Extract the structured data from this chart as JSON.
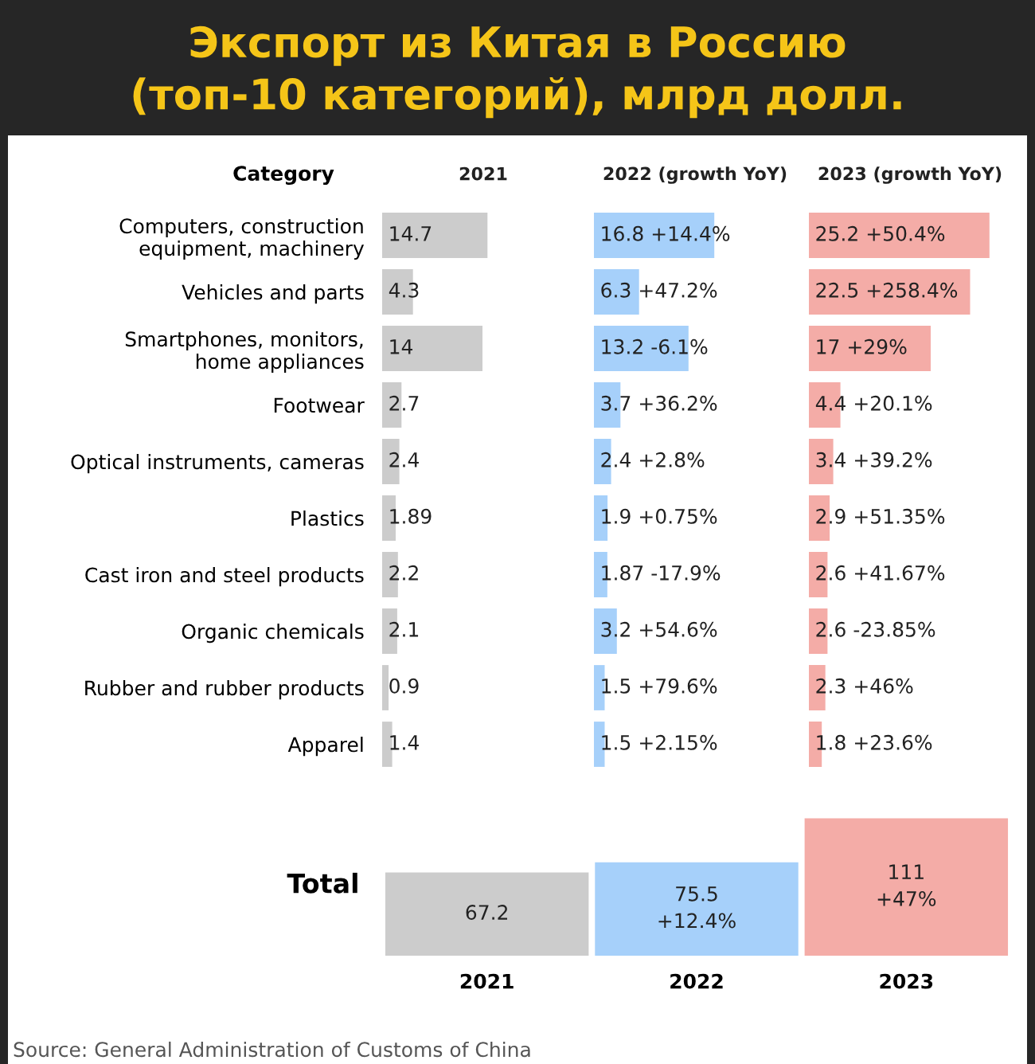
{
  "chart_data": [
    {
      "type": "bar",
      "orientation": "horizontal",
      "title": "Экспорт из Китая в Россию\n(топ-10 категорий), млрд долл.",
      "subtitle": "2021",
      "ylabel": "Category",
      "categories": [
        "Computers, construction\nequipment, machinery",
        "Vehicles and parts",
        "Smartphones, monitors,\nhome appliances",
        "Footwear",
        "Optical instruments, cameras",
        "Plastics",
        "Cast iron and steel products",
        "Organic chemicals",
        "Rubber and rubber products",
        "Apparel"
      ],
      "values": [
        14.7,
        4.3,
        14,
        2.7,
        2.4,
        1.89,
        2.2,
        2.1,
        0.9,
        1.4
      ],
      "color": "#cccccc",
      "data_labels": true,
      "tick_labels": "y"
    },
    {
      "type": "bar",
      "orientation": "horizontal",
      "title": "2022 (growth YoY)",
      "values": [
        16.8,
        6.3,
        13.2,
        3.7,
        2.4,
        1.9,
        1.87,
        3.2,
        1.5,
        1.5
      ],
      "color": "#a6d0fa",
      "value_labels": [
        "16.8 +14.4%",
        "6.3 +47.2%",
        "13.2 -6.1%",
        "3.7 +36.2%",
        "2.4 +2.8%",
        "1.9 +0.75%",
        "1.87 -17.9%",
        "3.2 +54.6%",
        "1.5 +79.6%",
        "1.5 +2.15%"
      ],
      "tick_labels": false
    },
    {
      "type": "bar",
      "orientation": "horizontal",
      "title": "2023 (growth YoY)",
      "values": [
        25.2,
        22.5,
        17,
        4.4,
        3.4,
        2.9,
        2.6,
        2.6,
        2.3,
        1.8
      ],
      "color": "#f4aca7",
      "value_labels": [
        "25.2 +50.4%",
        "22.5 +258.4%",
        "17 +29%",
        "4.4 +20.1%",
        "3.4 +39.2%",
        "2.9 +51.35%",
        "2.6 +41.67%",
        "2.6 -23.85%",
        "2.3 +46%",
        "1.8 +23.6%"
      ],
      "tick_labels": false
    },
    {
      "type": "bar",
      "ylabel": "Total",
      "categories": [
        "2021",
        "2022",
        "2023"
      ],
      "values": [
        67.2,
        75.5,
        111
      ],
      "colors": [
        "#cccccc",
        "#a6d0fa",
        "#f4aca7"
      ],
      "value_labels": [
        "67.2",
        "75.5\n+12.4%",
        "111\n+47%"
      ],
      "tick_labels": "x",
      "annotations": [
        "Source: General Administration of Customs of China"
      ]
    }
  ]
}
